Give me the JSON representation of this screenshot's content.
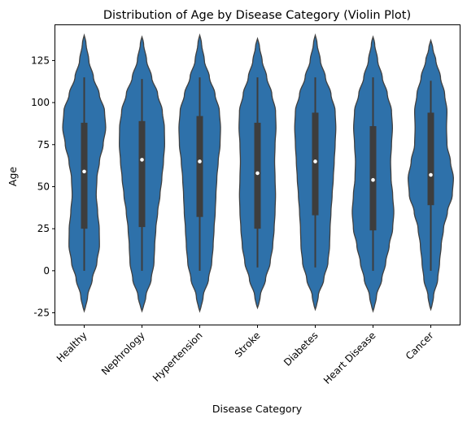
{
  "chart_data": {
    "type": "violin",
    "title": "Distribution of Age by Disease Category (Violin Plot)",
    "xlabel": "Disease Category",
    "ylabel": "Age",
    "ylim": [
      -32,
      146
    ],
    "yticks": [
      -25,
      0,
      25,
      50,
      75,
      100,
      125
    ],
    "grid": false,
    "color": "#2e71aa",
    "edge_color": "#404040",
    "categories": [
      {
        "name": "Healthy",
        "range": [
          -24,
          140
        ],
        "whisker": [
          0,
          115
        ],
        "q1": 25,
        "median": 59,
        "q3": 88,
        "density": [
          [
            -24,
            0.03
          ],
          [
            -15,
            0.15
          ],
          [
            -5,
            0.35
          ],
          [
            5,
            0.55
          ],
          [
            15,
            0.66
          ],
          [
            25,
            0.65
          ],
          [
            35,
            0.58
          ],
          [
            45,
            0.52
          ],
          [
            55,
            0.55
          ],
          [
            65,
            0.66
          ],
          [
            75,
            0.82
          ],
          [
            85,
            0.93
          ],
          [
            95,
            0.88
          ],
          [
            105,
            0.65
          ],
          [
            115,
            0.4
          ],
          [
            125,
            0.2
          ],
          [
            135,
            0.08
          ],
          [
            140,
            0.02
          ]
        ]
      },
      {
        "name": "Nephrology",
        "range": [
          -24,
          139
        ],
        "whisker": [
          0,
          114
        ],
        "q1": 26,
        "median": 66,
        "q3": 89,
        "density": [
          [
            -24,
            0.03
          ],
          [
            -15,
            0.17
          ],
          [
            -5,
            0.4
          ],
          [
            5,
            0.52
          ],
          [
            15,
            0.55
          ],
          [
            25,
            0.6
          ],
          [
            35,
            0.68
          ],
          [
            45,
            0.78
          ],
          [
            55,
            0.86
          ],
          [
            65,
            0.93
          ],
          [
            75,
            0.98
          ],
          [
            85,
            0.97
          ],
          [
            95,
            0.88
          ],
          [
            105,
            0.68
          ],
          [
            115,
            0.42
          ],
          [
            125,
            0.2
          ],
          [
            135,
            0.07
          ],
          [
            139,
            0.02
          ]
        ]
      },
      {
        "name": "Hypertension",
        "range": [
          -24,
          140
        ],
        "whisker": [
          0,
          115
        ],
        "q1": 32,
        "median": 65,
        "q3": 92,
        "density": [
          [
            -24,
            0.03
          ],
          [
            -15,
            0.15
          ],
          [
            -5,
            0.38
          ],
          [
            5,
            0.52
          ],
          [
            15,
            0.58
          ],
          [
            25,
            0.62
          ],
          [
            35,
            0.67
          ],
          [
            45,
            0.7
          ],
          [
            55,
            0.74
          ],
          [
            65,
            0.8
          ],
          [
            75,
            0.88
          ],
          [
            85,
            0.9
          ],
          [
            95,
            0.85
          ],
          [
            105,
            0.66
          ],
          [
            115,
            0.42
          ],
          [
            125,
            0.2
          ],
          [
            135,
            0.08
          ],
          [
            140,
            0.02
          ]
        ]
      },
      {
        "name": "Stroke",
        "range": [
          -22,
          138
        ],
        "whisker": [
          2,
          115
        ],
        "q1": 25,
        "median": 58,
        "q3": 88,
        "density": [
          [
            -22,
            0.03
          ],
          [
            -15,
            0.12
          ],
          [
            -5,
            0.35
          ],
          [
            5,
            0.55
          ],
          [
            15,
            0.66
          ],
          [
            25,
            0.72
          ],
          [
            35,
            0.76
          ],
          [
            45,
            0.78
          ],
          [
            55,
            0.76
          ],
          [
            65,
            0.74
          ],
          [
            75,
            0.76
          ],
          [
            85,
            0.8
          ],
          [
            95,
            0.78
          ],
          [
            105,
            0.62
          ],
          [
            115,
            0.4
          ],
          [
            125,
            0.2
          ],
          [
            133,
            0.09
          ],
          [
            138,
            0.02
          ]
        ]
      },
      {
        "name": "Diabetes",
        "range": [
          -23,
          140
        ],
        "whisker": [
          2,
          115
        ],
        "q1": 33,
        "median": 65,
        "q3": 94,
        "density": [
          [
            -23,
            0.03
          ],
          [
            -15,
            0.13
          ],
          [
            -5,
            0.37
          ],
          [
            5,
            0.55
          ],
          [
            15,
            0.62
          ],
          [
            25,
            0.64
          ],
          [
            35,
            0.68
          ],
          [
            45,
            0.73
          ],
          [
            55,
            0.78
          ],
          [
            65,
            0.82
          ],
          [
            75,
            0.86
          ],
          [
            85,
            0.89
          ],
          [
            95,
            0.86
          ],
          [
            105,
            0.68
          ],
          [
            115,
            0.44
          ],
          [
            125,
            0.22
          ],
          [
            135,
            0.08
          ],
          [
            140,
            0.02
          ]
        ]
      },
      {
        "name": "Heart Disease",
        "range": [
          -24,
          139
        ],
        "whisker": [
          0,
          115
        ],
        "q1": 24,
        "median": 54,
        "q3": 86,
        "density": [
          [
            -24,
            0.03
          ],
          [
            -15,
            0.15
          ],
          [
            -5,
            0.38
          ],
          [
            5,
            0.55
          ],
          [
            15,
            0.7
          ],
          [
            25,
            0.85
          ],
          [
            35,
            0.9
          ],
          [
            45,
            0.85
          ],
          [
            55,
            0.78
          ],
          [
            65,
            0.76
          ],
          [
            75,
            0.8
          ],
          [
            85,
            0.84
          ],
          [
            95,
            0.8
          ],
          [
            105,
            0.62
          ],
          [
            115,
            0.4
          ],
          [
            125,
            0.2
          ],
          [
            135,
            0.07
          ],
          [
            139,
            0.02
          ]
        ]
      },
      {
        "name": "Cancer",
        "range": [
          -23,
          137
        ],
        "whisker": [
          0,
          113
        ],
        "q1": 39,
        "median": 57,
        "q3": 94,
        "density": [
          [
            -23,
            0.03
          ],
          [
            -15,
            0.12
          ],
          [
            -5,
            0.3
          ],
          [
            5,
            0.38
          ],
          [
            15,
            0.45
          ],
          [
            25,
            0.55
          ],
          [
            35,
            0.72
          ],
          [
            45,
            0.93
          ],
          [
            55,
            0.98
          ],
          [
            65,
            0.85
          ],
          [
            75,
            0.7
          ],
          [
            85,
            0.68
          ],
          [
            95,
            0.7
          ],
          [
            105,
            0.6
          ],
          [
            115,
            0.42
          ],
          [
            125,
            0.22
          ],
          [
            132,
            0.09
          ],
          [
            137,
            0.02
          ]
        ]
      }
    ]
  }
}
